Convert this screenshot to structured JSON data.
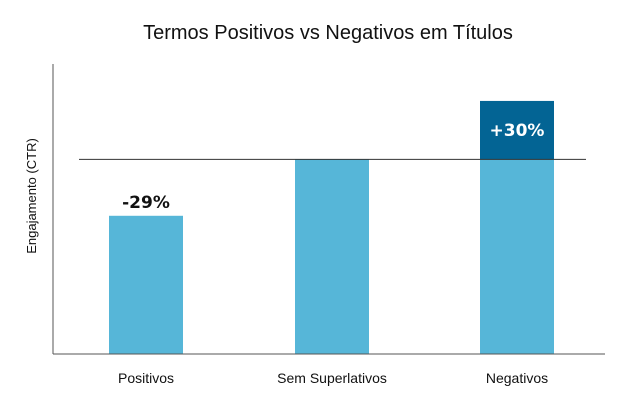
{
  "chart_data": {
    "type": "bar",
    "title": "Termos Positivos vs Negativos em Títulos",
    "xlabel": "",
    "ylabel": "Engajamento (CTR)",
    "categories": [
      "Positivos",
      "Sem Superlativos",
      "Negativos"
    ],
    "values": [
      71,
      100,
      130
    ],
    "ylim": [
      0,
      150
    ],
    "baseline": {
      "value": 100
    },
    "data_labels": [
      "-29%",
      "",
      "+30%"
    ],
    "highlight": {
      "category": "Negativos",
      "from": 100,
      "to": 130,
      "label": "+30%"
    },
    "colors": {
      "bar": "#56b6d8",
      "highlight": "#036494",
      "baseline": "#333333",
      "axis": "#555555",
      "text": "#111111",
      "highlight_text": "#ffffff"
    },
    "grid": false,
    "legend": "none"
  }
}
